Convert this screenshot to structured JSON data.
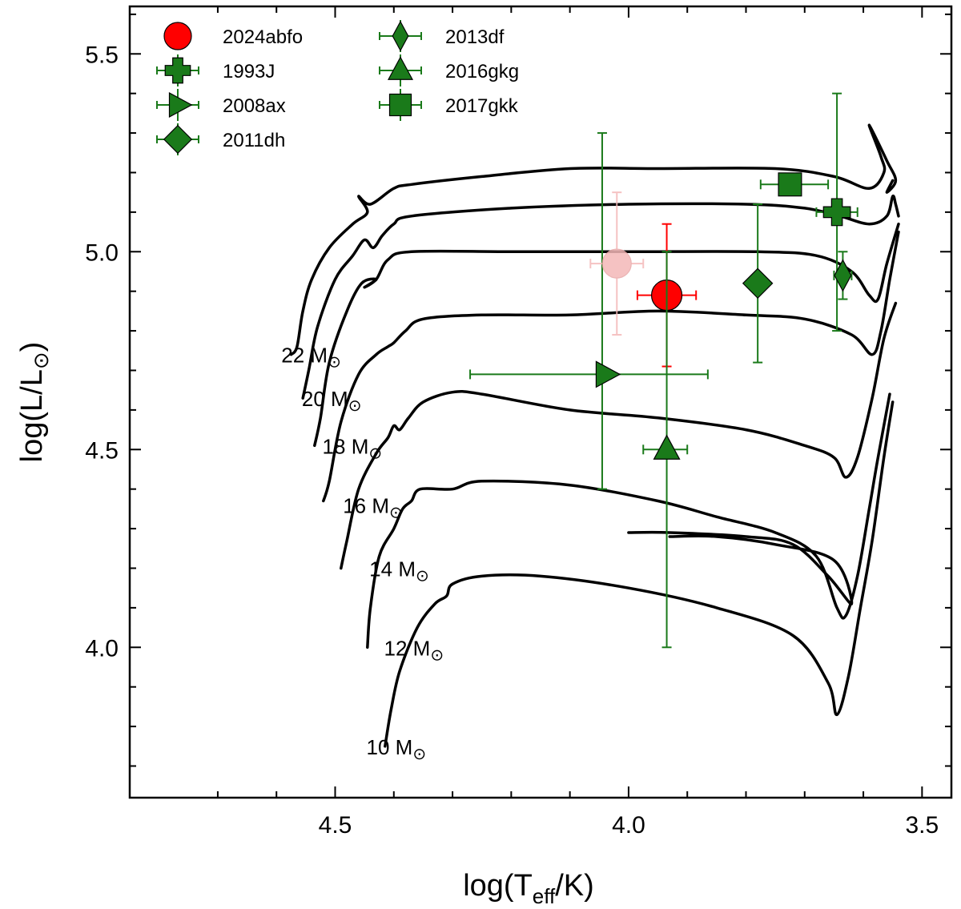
{
  "chart_data": {
    "type": "scatter",
    "title": "",
    "xlabel_main": "log(T",
    "xlabel_sub": "eff",
    "xlabel_end": "/K)",
    "ylabel_main": "log(L/L",
    "ylabel_sym": "⊙",
    "ylabel_end": ")",
    "xlim": [
      4.85,
      3.45
    ],
    "ylim": [
      3.62,
      5.62
    ],
    "x_ticks": [
      4.5,
      4.0,
      3.5
    ],
    "x_tick_labels": [
      "4.5",
      "4.0",
      "3.5"
    ],
    "y_ticks": [
      4.0,
      4.5,
      5.0,
      5.5
    ],
    "y_tick_labels": [
      "4.0",
      "4.5",
      "5.0",
      "5.5"
    ],
    "colors": {
      "red": "#ff0000",
      "green": "#1a7a1a",
      "faded": "#f4b8b8",
      "track": "#000000"
    },
    "series": [
      {
        "name": "2024abfo",
        "marker": "circle",
        "color": "#ff0000",
        "x": 3.935,
        "y": 4.89,
        "xerr": [
          0.05,
          0.05
        ],
        "yerr": [
          0.18,
          0.18
        ]
      },
      {
        "name": "1993J",
        "marker": "plus",
        "color": "#1a7a1a",
        "x": 3.645,
        "y": 5.1,
        "xerr": [
          0.035,
          0.035
        ],
        "yerr": [
          0.0,
          0.0
        ]
      },
      {
        "name": "2008ax",
        "marker": "triangle-right",
        "color": "#1a7a1a",
        "x": 4.04,
        "y": 4.69,
        "xerr": [
          0.23,
          0.175
        ],
        "yerr": [
          0.0,
          0.0
        ]
      },
      {
        "name": "2011dh",
        "marker": "diamond",
        "color": "#1a7a1a",
        "x": 3.78,
        "y": 4.92,
        "xerr": [
          0.0,
          0.0
        ],
        "yerr": [
          0.2,
          0.2
        ]
      },
      {
        "name": "2013df",
        "marker": "thin-diamond",
        "color": "#1a7a1a",
        "x": 3.635,
        "y": 4.94,
        "xerr": [
          0.015,
          0.015
        ],
        "yerr": [
          0.06,
          0.06
        ]
      },
      {
        "name": "2016gkg",
        "marker": "triangle-up",
        "color": "#1a7a1a",
        "x": 3.935,
        "y": 4.5,
        "xerr": [
          0.04,
          0.035
        ],
        "yerr": [
          0.5,
          0.5
        ]
      },
      {
        "name": "2017gkk",
        "marker": "square",
        "color": "#1a7a1a",
        "x": 3.725,
        "y": 5.17,
        "xerr": [
          0.05,
          0.065
        ],
        "yerr": [
          0.0,
          0.0
        ]
      }
    ],
    "extra_points": [
      {
        "name": "2024abfo-alt",
        "marker": "circle",
        "color": "#f4b8b8",
        "x": 4.02,
        "y": 4.97,
        "xerr": [
          0.045,
          0.045
        ],
        "yerr": [
          0.18,
          0.18
        ]
      }
    ],
    "green_vertical_bar": {
      "x": 4.045,
      "y_low": 4.4,
      "y_high": 5.3
    },
    "green_vertical_bar_2": {
      "x": 3.645,
      "y_low": 4.8,
      "y_high": 5.4
    },
    "tracks": [
      {
        "label": "22 M",
        "sym": "⊙",
        "label_at": [
          4.49,
          4.74
        ],
        "points": [
          [
            4.575,
            4.74
          ],
          [
            4.565,
            4.76
          ],
          [
            4.555,
            4.85
          ],
          [
            4.54,
            4.93
          ],
          [
            4.51,
            5.01
          ],
          [
            4.47,
            5.07
          ],
          [
            4.445,
            5.1
          ],
          [
            4.46,
            5.14
          ],
          [
            4.44,
            5.12
          ],
          [
            4.4,
            5.16
          ],
          [
            4.37,
            5.17
          ],
          [
            4.25,
            5.19
          ],
          [
            4.1,
            5.21
          ],
          [
            3.95,
            5.21
          ],
          [
            3.75,
            5.21
          ],
          [
            3.65,
            5.19
          ],
          [
            3.59,
            5.16
          ],
          [
            3.565,
            5.2
          ],
          [
            3.57,
            5.24
          ],
          [
            3.59,
            5.32
          ],
          [
            3.56,
            5.23
          ],
          [
            3.545,
            5.18
          ],
          [
            3.56,
            5.15
          ],
          [
            3.55,
            5.18
          ]
        ]
      },
      {
        "label": "20 M",
        "sym": "⊙",
        "label_at": [
          4.455,
          4.63
        ],
        "points": [
          [
            4.555,
            4.63
          ],
          [
            4.545,
            4.7
          ],
          [
            4.53,
            4.81
          ],
          [
            4.5,
            4.93
          ],
          [
            4.47,
            4.99
          ],
          [
            4.45,
            5.03
          ],
          [
            4.435,
            5.01
          ],
          [
            4.42,
            5.04
          ],
          [
            4.4,
            5.07
          ],
          [
            4.37,
            5.09
          ],
          [
            4.2,
            5.11
          ],
          [
            4.0,
            5.12
          ],
          [
            3.8,
            5.12
          ],
          [
            3.7,
            5.11
          ],
          [
            3.64,
            5.09
          ],
          [
            3.59,
            5.07
          ],
          [
            3.56,
            5.09
          ],
          [
            3.55,
            5.14
          ],
          [
            3.545,
            5.12
          ],
          [
            3.54,
            5.09
          ]
        ]
      },
      {
        "label": "18 M",
        "sym": "⊙",
        "label_at": [
          4.42,
          4.51
        ],
        "points": [
          [
            4.535,
            4.51
          ],
          [
            4.525,
            4.58
          ],
          [
            4.51,
            4.72
          ],
          [
            4.48,
            4.85
          ],
          [
            4.455,
            4.92
          ],
          [
            4.43,
            4.93
          ],
          [
            4.45,
            4.91
          ],
          [
            4.43,
            4.93
          ],
          [
            4.41,
            4.98
          ],
          [
            4.37,
            5.0
          ],
          [
            4.2,
            5.0
          ],
          [
            4.0,
            5.0
          ],
          [
            3.78,
            5.0
          ],
          [
            3.68,
            4.99
          ],
          [
            3.62,
            4.95
          ],
          [
            3.59,
            4.89
          ],
          [
            3.575,
            4.88
          ],
          [
            3.56,
            4.97
          ],
          [
            3.54,
            5.07
          ]
        ]
      },
      {
        "label": "16 M",
        "sym": "⊙",
        "label_at": [
          4.385,
          4.36
        ],
        "points": [
          [
            4.52,
            4.37
          ],
          [
            4.51,
            4.42
          ],
          [
            4.49,
            4.57
          ],
          [
            4.46,
            4.69
          ],
          [
            4.43,
            4.74
          ],
          [
            4.41,
            4.76
          ],
          [
            4.4,
            4.77
          ],
          [
            4.38,
            4.8
          ],
          [
            4.35,
            4.83
          ],
          [
            4.25,
            4.84
          ],
          [
            4.1,
            4.84
          ],
          [
            3.95,
            4.85
          ],
          [
            3.8,
            4.84
          ],
          [
            3.7,
            4.83
          ],
          [
            3.62,
            4.79
          ],
          [
            3.585,
            4.74
          ],
          [
            3.57,
            4.8
          ],
          [
            3.555,
            4.93
          ],
          [
            3.54,
            5.05
          ]
        ]
      },
      {
        "label": "14 M",
        "sym": "⊙",
        "label_at": [
          4.34,
          4.2
        ],
        "points": [
          [
            4.49,
            4.2
          ],
          [
            4.48,
            4.27
          ],
          [
            4.46,
            4.4
          ],
          [
            4.43,
            4.49
          ],
          [
            4.41,
            4.53
          ],
          [
            4.4,
            4.56
          ],
          [
            4.39,
            4.55
          ],
          [
            4.375,
            4.58
          ],
          [
            4.35,
            4.62
          ],
          [
            4.3,
            4.645
          ],
          [
            4.25,
            4.64
          ],
          [
            4.1,
            4.6
          ],
          [
            3.95,
            4.58
          ],
          [
            3.8,
            4.55
          ],
          [
            3.7,
            4.51
          ],
          [
            3.65,
            4.48
          ],
          [
            3.63,
            4.43
          ],
          [
            3.61,
            4.48
          ],
          [
            3.585,
            4.63
          ],
          [
            3.565,
            4.78
          ],
          [
            3.545,
            4.87
          ]
        ]
      },
      {
        "label": "12 M",
        "sym": "⊙",
        "label_at": [
          4.315,
          4.0
        ],
        "points": [
          [
            4.445,
            4.0
          ],
          [
            4.44,
            4.1
          ],
          [
            4.425,
            4.23
          ],
          [
            4.4,
            4.3
          ],
          [
            4.385,
            4.35
          ],
          [
            4.37,
            4.37
          ],
          [
            4.355,
            4.4
          ],
          [
            4.3,
            4.4
          ],
          [
            4.25,
            4.42
          ],
          [
            4.1,
            4.41
          ],
          [
            3.95,
            4.37
          ],
          [
            3.85,
            4.33
          ],
          [
            3.75,
            4.29
          ],
          [
            3.68,
            4.23
          ],
          [
            3.645,
            4.1
          ],
          [
            3.63,
            4.08
          ],
          [
            3.61,
            4.18
          ],
          [
            3.59,
            4.35
          ],
          [
            3.575,
            4.48
          ],
          [
            3.555,
            4.64
          ]
        ]
      },
      {
        "label": "10 M",
        "sym": "⊙",
        "label_at": [
          4.345,
          3.75
        ],
        "points": [
          [
            4.415,
            3.75
          ],
          [
            4.405,
            3.84
          ],
          [
            4.39,
            3.94
          ],
          [
            4.36,
            4.05
          ],
          [
            4.33,
            4.11
          ],
          [
            4.31,
            4.13
          ],
          [
            4.3,
            4.16
          ],
          [
            4.25,
            4.18
          ],
          [
            4.15,
            4.18
          ],
          [
            4.0,
            4.15
          ],
          [
            3.85,
            4.1
          ],
          [
            3.72,
            4.03
          ],
          [
            3.66,
            3.91
          ],
          [
            3.645,
            3.83
          ],
          [
            3.625,
            3.93
          ],
          [
            3.605,
            4.1
          ],
          [
            3.585,
            4.27
          ],
          [
            3.565,
            4.48
          ],
          [
            3.55,
            4.62
          ]
        ]
      }
    ],
    "loop_track": {
      "points": [
        [
          4.0,
          4.29
        ],
        [
          3.93,
          4.29
        ],
        [
          3.8,
          4.28
        ],
        [
          3.72,
          4.26
        ],
        [
          3.66,
          4.18
        ],
        [
          3.62,
          4.11
        ],
        [
          3.65,
          4.22
        ],
        [
          3.75,
          4.26
        ],
        [
          3.85,
          4.28
        ],
        [
          3.93,
          4.28
        ]
      ]
    },
    "legend": [
      {
        "text": "2024abfo",
        "marker": "circle",
        "color": "#ff0000"
      },
      {
        "text": "1993J",
        "marker": "plus",
        "color": "#1a7a1a"
      },
      {
        "text": "2008ax",
        "marker": "triangle-right",
        "color": "#1a7a1a"
      },
      {
        "text": "2011dh",
        "marker": "diamond",
        "color": "#1a7a1a"
      },
      {
        "text": "2013df",
        "marker": "thin-diamond",
        "color": "#1a7a1a"
      },
      {
        "text": "2016gkg",
        "marker": "triangle-up",
        "color": "#1a7a1a"
      },
      {
        "text": "2017gkk",
        "marker": "square",
        "color": "#1a7a1a"
      }
    ]
  }
}
